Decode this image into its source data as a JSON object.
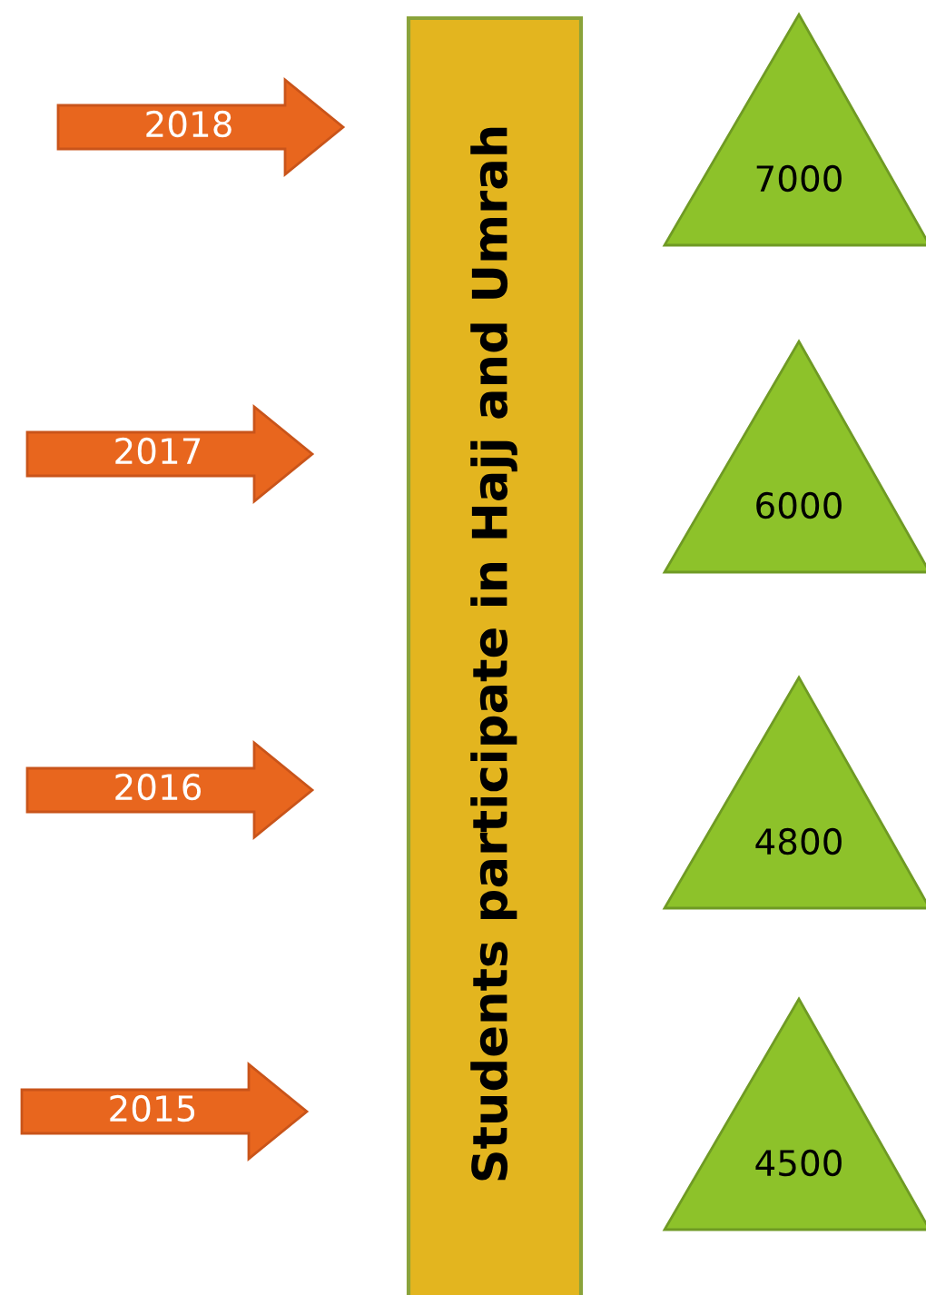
{
  "chart_data": {
    "type": "other",
    "title": "Students participate in Hajj and Umrah",
    "categories": [
      "2018",
      "2017",
      "2016",
      "2015"
    ],
    "values": [
      7000,
      6000,
      4800,
      4500
    ],
    "data_labels": true,
    "colors": [
      "#8dc22a",
      "#8dc22a",
      "#8dc22a",
      "#8dc22a"
    ]
  }
}
